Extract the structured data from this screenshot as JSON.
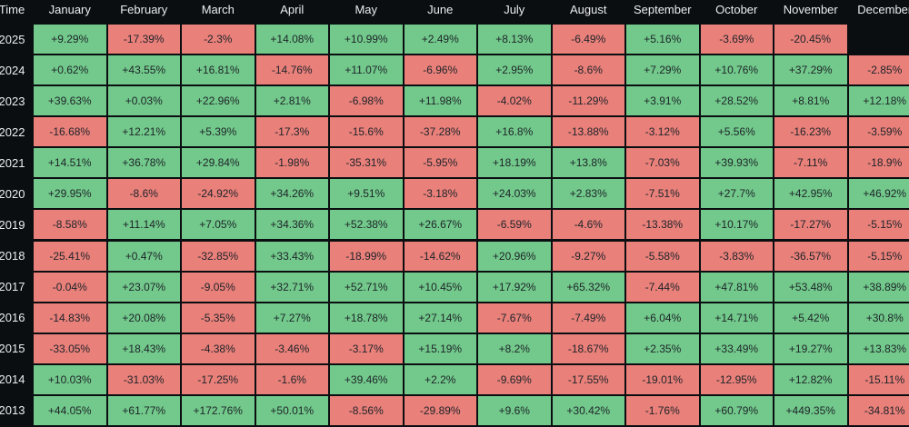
{
  "table": {
    "header": [
      "Time",
      "January",
      "February",
      "March",
      "April",
      "May",
      "June",
      "July",
      "August",
      "September",
      "October",
      "November",
      "December"
    ],
    "rows": [
      [
        "2025",
        "+9.29%",
        "-17.39%",
        "-2.3%",
        "+14.08%",
        "+10.99%",
        "+2.49%",
        "+8.13%",
        "-6.49%",
        "+5.16%",
        "-3.69%",
        "-20.45%"
      ],
      [
        "2024",
        "+0.62%",
        "+43.55%",
        "+16.81%",
        "-14.76%",
        "+11.07%",
        "-6.96%",
        "+2.95%",
        "-8.6%",
        "+7.29%",
        "+10.76%",
        "+37.29%",
        "-2.85%"
      ],
      [
        "2023",
        "+39.63%",
        "+0.03%",
        "+22.96%",
        "+2.81%",
        "-6.98%",
        "+11.98%",
        "-4.02%",
        "-11.29%",
        "+3.91%",
        "+28.52%",
        "+8.81%",
        "+12.18%"
      ],
      [
        "2022",
        "-16.68%",
        "+12.21%",
        "+5.39%",
        "-17.3%",
        "-15.6%",
        "-37.28%",
        "+16.8%",
        "-13.88%",
        "-3.12%",
        "+5.56%",
        "-16.23%",
        "-3.59%"
      ],
      [
        "2021",
        "+14.51%",
        "+36.78%",
        "+29.84%",
        "-1.98%",
        "-35.31%",
        "-5.95%",
        "+18.19%",
        "+13.8%",
        "-7.03%",
        "+39.93%",
        "-7.11%",
        "-18.9%"
      ],
      [
        "2020",
        "+29.95%",
        "-8.6%",
        "-24.92%",
        "+34.26%",
        "+9.51%",
        "-3.18%",
        "+24.03%",
        "+2.83%",
        "-7.51%",
        "+27.7%",
        "+42.95%",
        "+46.92%"
      ],
      [
        "2019",
        "-8.58%",
        "+11.14%",
        "+7.05%",
        "+34.36%",
        "+52.38%",
        "+26.67%",
        "-6.59%",
        "-4.6%",
        "-13.38%",
        "+10.17%",
        "-17.27%",
        "-5.15%"
      ],
      [
        "2018",
        "-25.41%",
        "+0.47%",
        "-32.85%",
        "+33.43%",
        "-18.99%",
        "-14.62%",
        "+20.96%",
        "-9.27%",
        "-5.58%",
        "-3.83%",
        "-36.57%",
        "-5.15%"
      ],
      [
        "2017",
        "-0.04%",
        "+23.07%",
        "-9.05%",
        "+32.71%",
        "+52.71%",
        "+10.45%",
        "+17.92%",
        "+65.32%",
        "-7.44%",
        "+47.81%",
        "+53.48%",
        "+38.89%"
      ],
      [
        "2016",
        "-14.83%",
        "+20.08%",
        "-5.35%",
        "+7.27%",
        "+18.78%",
        "+27.14%",
        "-7.67%",
        "-7.49%",
        "+6.04%",
        "+14.71%",
        "+5.42%",
        "+30.8%"
      ],
      [
        "2015",
        "-33.05%",
        "+18.43%",
        "-4.38%",
        "-3.46%",
        "-3.17%",
        "+15.19%",
        "+8.2%",
        "-18.67%",
        "+2.35%",
        "+33.49%",
        "+19.27%",
        "+13.83%"
      ],
      [
        "2014",
        "+10.03%",
        "-31.03%",
        "-17.25%",
        "-1.6%",
        "+39.46%",
        "+2.2%",
        "-9.69%",
        "-17.55%",
        "-19.01%",
        "-12.95%",
        "+12.82%",
        "-15.11%"
      ],
      [
        "2013",
        "+44.05%",
        "+61.77%",
        "+172.76%",
        "+50.01%",
        "-8.56%",
        "-29.89%",
        "+9.6%",
        "+30.42%",
        "-1.76%",
        "+60.79%",
        "+449.35%",
        "-34.81%"
      ]
    ]
  }
}
